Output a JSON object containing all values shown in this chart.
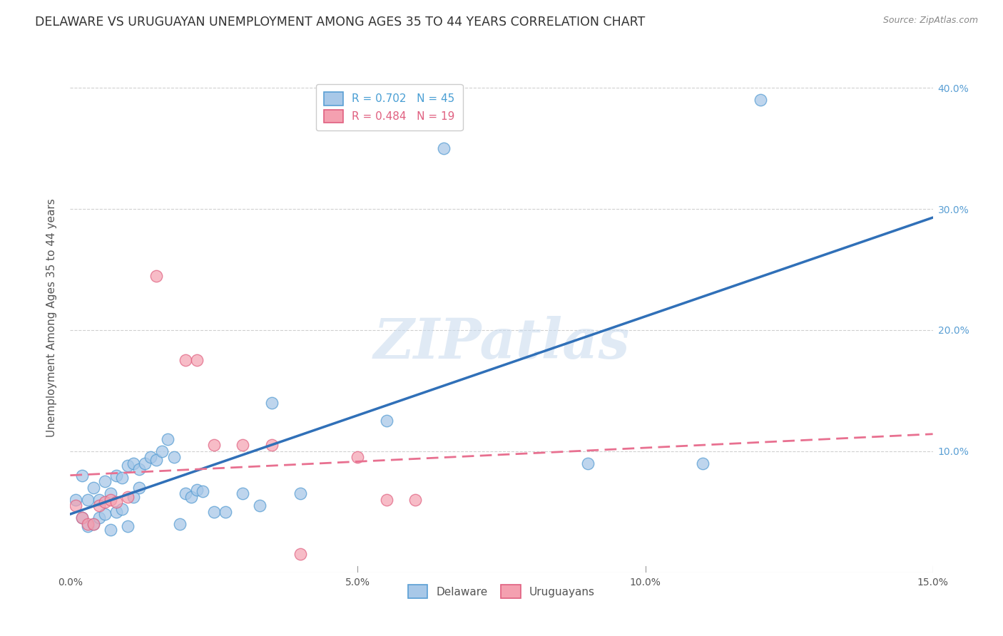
{
  "title": "DELAWARE VS URUGUAYAN UNEMPLOYMENT AMONG AGES 35 TO 44 YEARS CORRELATION CHART",
  "source": "Source: ZipAtlas.com",
  "ylabel": "Unemployment Among Ages 35 to 44 years",
  "xlim": [
    0.0,
    0.15
  ],
  "ylim": [
    0.0,
    0.42
  ],
  "xticks": [
    0.0,
    0.05,
    0.1,
    0.15
  ],
  "yticks": [
    0.1,
    0.2,
    0.3,
    0.4
  ],
  "legend_r_delaware": "R = 0.702",
  "legend_n_delaware": "N = 45",
  "legend_r_uruguayan": "R = 0.484",
  "legend_n_uruguayan": "N = 19",
  "watermark": "ZIPatlas",
  "delaware_color": "#a8c8e8",
  "delaware_edge": "#5a9fd4",
  "uruguayan_color": "#f4a0b0",
  "uruguayan_edge": "#e06080",
  "delaware_line_color": "#3070b8",
  "uruguayan_line_color": "#e87090",
  "background_color": "#ffffff",
  "grid_color": "#d0d0d0",
  "title_fontsize": 12.5,
  "label_fontsize": 11,
  "tick_fontsize": 10,
  "right_tick_color": "#5a9fd4",
  "delaware_x": [
    0.001,
    0.002,
    0.002,
    0.003,
    0.003,
    0.004,
    0.004,
    0.005,
    0.005,
    0.006,
    0.006,
    0.007,
    0.007,
    0.008,
    0.008,
    0.009,
    0.009,
    0.01,
    0.01,
    0.011,
    0.011,
    0.012,
    0.012,
    0.013,
    0.014,
    0.015,
    0.016,
    0.017,
    0.018,
    0.019,
    0.02,
    0.021,
    0.022,
    0.023,
    0.025,
    0.027,
    0.03,
    0.033,
    0.035,
    0.04,
    0.055,
    0.065,
    0.09,
    0.11,
    0.12
  ],
  "delaware_y": [
    0.06,
    0.08,
    0.045,
    0.06,
    0.038,
    0.07,
    0.04,
    0.06,
    0.045,
    0.075,
    0.048,
    0.065,
    0.035,
    0.08,
    0.05,
    0.078,
    0.052,
    0.088,
    0.038,
    0.09,
    0.062,
    0.085,
    0.07,
    0.09,
    0.095,
    0.093,
    0.1,
    0.11,
    0.095,
    0.04,
    0.065,
    0.062,
    0.068,
    0.067,
    0.05,
    0.05,
    0.065,
    0.055,
    0.14,
    0.065,
    0.125,
    0.35,
    0.09,
    0.09,
    0.39
  ],
  "uruguayan_x": [
    0.001,
    0.002,
    0.003,
    0.004,
    0.005,
    0.006,
    0.007,
    0.008,
    0.01,
    0.015,
    0.02,
    0.022,
    0.025,
    0.03,
    0.035,
    0.04,
    0.05,
    0.055,
    0.06
  ],
  "uruguayan_y": [
    0.055,
    0.045,
    0.04,
    0.04,
    0.055,
    0.058,
    0.06,
    0.058,
    0.062,
    0.245,
    0.175,
    0.175,
    0.105,
    0.105,
    0.105,
    0.015,
    0.095,
    0.06,
    0.06
  ]
}
